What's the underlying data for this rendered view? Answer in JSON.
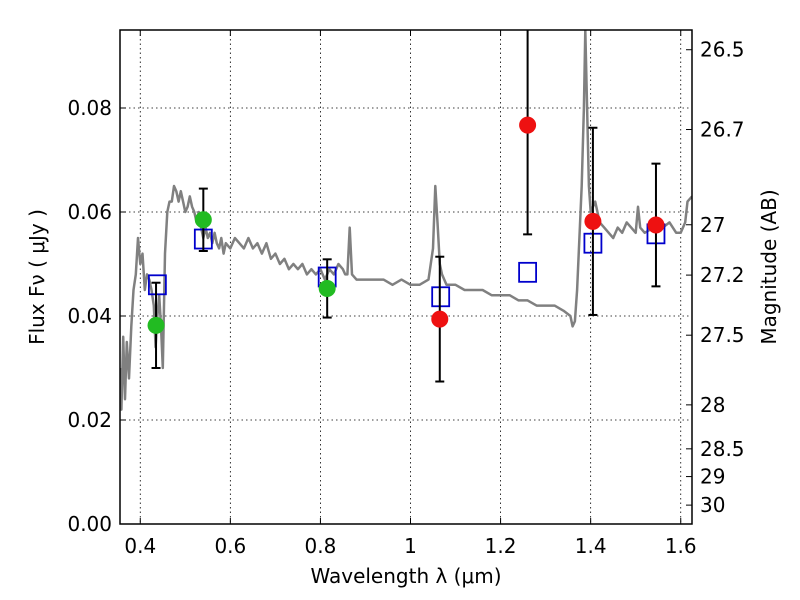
{
  "chart_data": {
    "type": "scatter",
    "xlabel": "Wavelength  λ (μm)",
    "ylabel": "Flux  Fν  ( μJy )",
    "y2label": "Magnitude (AB)",
    "xlim": [
      0.355,
      1.625
    ],
    "ylim": [
      0.0,
      0.095
    ],
    "grid": true,
    "x_ticks": [
      {
        "value": 0.4,
        "label": "0.4"
      },
      {
        "value": 0.6,
        "label": "0.6"
      },
      {
        "value": 0.8,
        "label": "0.8"
      },
      {
        "value": 1.0,
        "label": "1"
      },
      {
        "value": 1.2,
        "label": "1.2"
      },
      {
        "value": 1.4,
        "label": "1.4"
      },
      {
        "value": 1.6,
        "label": "1.6"
      }
    ],
    "y_ticks": [
      {
        "value": 0.0,
        "label": "0.00"
      },
      {
        "value": 0.02,
        "label": "0.02"
      },
      {
        "value": 0.04,
        "label": "0.04"
      },
      {
        "value": 0.06,
        "label": "0.06"
      },
      {
        "value": 0.08,
        "label": "0.08"
      }
    ],
    "y2_ticks": [
      {
        "value": 26.5,
        "label": "26.5"
      },
      {
        "value": 26.7,
        "label": "26.7"
      },
      {
        "value": 27.0,
        "label": "27"
      },
      {
        "value": 27.2,
        "label": "27.2"
      },
      {
        "value": 27.5,
        "label": "27.5"
      },
      {
        "value": 28.0,
        "label": "28"
      },
      {
        "value": 28.5,
        "label": "28.5"
      },
      {
        "value": 29.0,
        "label": "29"
      },
      {
        "value": 30.0,
        "label": "30"
      }
    ],
    "colors": {
      "model": "#808080",
      "optical": "#22bb22",
      "infrared": "#ee1111",
      "synthetic": "#0000cc",
      "errorbar": "#000000"
    },
    "model_spectrum": {
      "points": [
        [
          0.355,
          0.03
        ],
        [
          0.358,
          0.022
        ],
        [
          0.362,
          0.036
        ],
        [
          0.366,
          0.024
        ],
        [
          0.37,
          0.035
        ],
        [
          0.375,
          0.028
        ],
        [
          0.38,
          0.038
        ],
        [
          0.385,
          0.045
        ],
        [
          0.39,
          0.048
        ],
        [
          0.395,
          0.055
        ],
        [
          0.4,
          0.05
        ],
        [
          0.405,
          0.052
        ],
        [
          0.41,
          0.045
        ],
        [
          0.415,
          0.048
        ],
        [
          0.42,
          0.047
        ],
        [
          0.425,
          0.045
        ],
        [
          0.43,
          0.042
        ],
        [
          0.434,
          0.034
        ],
        [
          0.438,
          0.04
        ],
        [
          0.442,
          0.044
        ],
        [
          0.446,
          0.038
        ],
        [
          0.45,
          0.03
        ],
        [
          0.455,
          0.052
        ],
        [
          0.46,
          0.06
        ],
        [
          0.465,
          0.062
        ],
        [
          0.47,
          0.062
        ],
        [
          0.475,
          0.065
        ],
        [
          0.48,
          0.064
        ],
        [
          0.485,
          0.062
        ],
        [
          0.49,
          0.064
        ],
        [
          0.495,
          0.062
        ],
        [
          0.5,
          0.06
        ],
        [
          0.505,
          0.061
        ],
        [
          0.51,
          0.063
        ],
        [
          0.515,
          0.061
        ],
        [
          0.52,
          0.06
        ],
        [
          0.525,
          0.058
        ],
        [
          0.53,
          0.06
        ],
        [
          0.535,
          0.057
        ],
        [
          0.54,
          0.055
        ],
        [
          0.545,
          0.057
        ],
        [
          0.55,
          0.055
        ],
        [
          0.555,
          0.056
        ],
        [
          0.56,
          0.054
        ],
        [
          0.565,
          0.056
        ],
        [
          0.57,
          0.054
        ],
        [
          0.575,
          0.053
        ],
        [
          0.58,
          0.055
        ],
        [
          0.585,
          0.052
        ],
        [
          0.59,
          0.054
        ],
        [
          0.6,
          0.053
        ],
        [
          0.61,
          0.055
        ],
        [
          0.62,
          0.054
        ],
        [
          0.63,
          0.053
        ],
        [
          0.64,
          0.055
        ],
        [
          0.65,
          0.053
        ],
        [
          0.66,
          0.054
        ],
        [
          0.67,
          0.052
        ],
        [
          0.68,
          0.054
        ],
        [
          0.69,
          0.051
        ],
        [
          0.7,
          0.052
        ],
        [
          0.71,
          0.05
        ],
        [
          0.72,
          0.051
        ],
        [
          0.73,
          0.049
        ],
        [
          0.74,
          0.05
        ],
        [
          0.75,
          0.049
        ],
        [
          0.76,
          0.05
        ],
        [
          0.77,
          0.048
        ],
        [
          0.78,
          0.049
        ],
        [
          0.79,
          0.048
        ],
        [
          0.8,
          0.049
        ],
        [
          0.81,
          0.047
        ],
        [
          0.82,
          0.049
        ],
        [
          0.83,
          0.048
        ],
        [
          0.84,
          0.05
        ],
        [
          0.85,
          0.049
        ],
        [
          0.855,
          0.048
        ],
        [
          0.86,
          0.048
        ],
        [
          0.865,
          0.057
        ],
        [
          0.87,
          0.048
        ],
        [
          0.88,
          0.047
        ],
        [
          0.9,
          0.047
        ],
        [
          0.92,
          0.047
        ],
        [
          0.94,
          0.047
        ],
        [
          0.96,
          0.046
        ],
        [
          0.98,
          0.047
        ],
        [
          1.0,
          0.046
        ],
        [
          1.02,
          0.046
        ],
        [
          1.04,
          0.047
        ],
        [
          1.05,
          0.053
        ],
        [
          1.055,
          0.065
        ],
        [
          1.06,
          0.058
        ],
        [
          1.065,
          0.05
        ],
        [
          1.07,
          0.048
        ],
        [
          1.08,
          0.046
        ],
        [
          1.1,
          0.046
        ],
        [
          1.12,
          0.045
        ],
        [
          1.14,
          0.045
        ],
        [
          1.16,
          0.045
        ],
        [
          1.18,
          0.044
        ],
        [
          1.2,
          0.044
        ],
        [
          1.22,
          0.044
        ],
        [
          1.24,
          0.043
        ],
        [
          1.26,
          0.043
        ],
        [
          1.28,
          0.042
        ],
        [
          1.3,
          0.042
        ],
        [
          1.32,
          0.042
        ],
        [
          1.34,
          0.041
        ],
        [
          1.355,
          0.04
        ],
        [
          1.36,
          0.038
        ],
        [
          1.365,
          0.039
        ],
        [
          1.37,
          0.045
        ],
        [
          1.375,
          0.055
        ],
        [
          1.38,
          0.065
        ],
        [
          1.385,
          0.08
        ],
        [
          1.388,
          0.095
        ],
        [
          1.392,
          0.08
        ],
        [
          1.396,
          0.065
        ],
        [
          1.4,
          0.06
        ],
        [
          1.41,
          0.062
        ],
        [
          1.42,
          0.058
        ],
        [
          1.43,
          0.057
        ],
        [
          1.44,
          0.056
        ],
        [
          1.45,
          0.055
        ],
        [
          1.46,
          0.057
        ],
        [
          1.47,
          0.056
        ],
        [
          1.48,
          0.058
        ],
        [
          1.49,
          0.057
        ],
        [
          1.5,
          0.056
        ],
        [
          1.505,
          0.061
        ],
        [
          1.51,
          0.057
        ],
        [
          1.52,
          0.056
        ],
        [
          1.54,
          0.057
        ],
        [
          1.56,
          0.057
        ],
        [
          1.575,
          0.058
        ],
        [
          1.59,
          0.056
        ],
        [
          1.6,
          0.056
        ],
        [
          1.61,
          0.058
        ],
        [
          1.615,
          0.062
        ],
        [
          1.625,
          0.063
        ]
      ]
    },
    "series": [
      {
        "color_key": "optical",
        "points": [
          {
            "x": 0.435,
            "y": 0.0382,
            "err_lo": 0.0082,
            "err_hi": 0.0082
          },
          {
            "x": 0.54,
            "y": 0.0585,
            "err_lo": 0.006,
            "err_hi": 0.006
          },
          {
            "x": 0.815,
            "y": 0.0453,
            "err_lo": 0.0056,
            "err_hi": 0.0056
          }
        ]
      },
      {
        "color_key": "infrared",
        "points": [
          {
            "x": 1.065,
            "y": 0.0394,
            "err_lo": 0.012,
            "err_hi": 0.012
          },
          {
            "x": 1.26,
            "y": 0.0767,
            "err_lo": 0.021,
            "err_hi": 0.021
          },
          {
            "x": 1.405,
            "y": 0.0582,
            "err_lo": 0.018,
            "err_hi": 0.018
          },
          {
            "x": 1.545,
            "y": 0.0575,
            "err_lo": 0.0118,
            "err_hi": 0.0118
          }
        ]
      },
      {
        "color_key": "synthetic",
        "marker": "open-square",
        "points": [
          {
            "x": 0.438,
            "y": 0.046
          },
          {
            "x": 0.54,
            "y": 0.0548
          },
          {
            "x": 0.815,
            "y": 0.0475
          },
          {
            "x": 1.067,
            "y": 0.0437
          },
          {
            "x": 1.26,
            "y": 0.0484
          },
          {
            "x": 1.405,
            "y": 0.054
          },
          {
            "x": 1.545,
            "y": 0.0558
          }
        ]
      }
    ]
  }
}
